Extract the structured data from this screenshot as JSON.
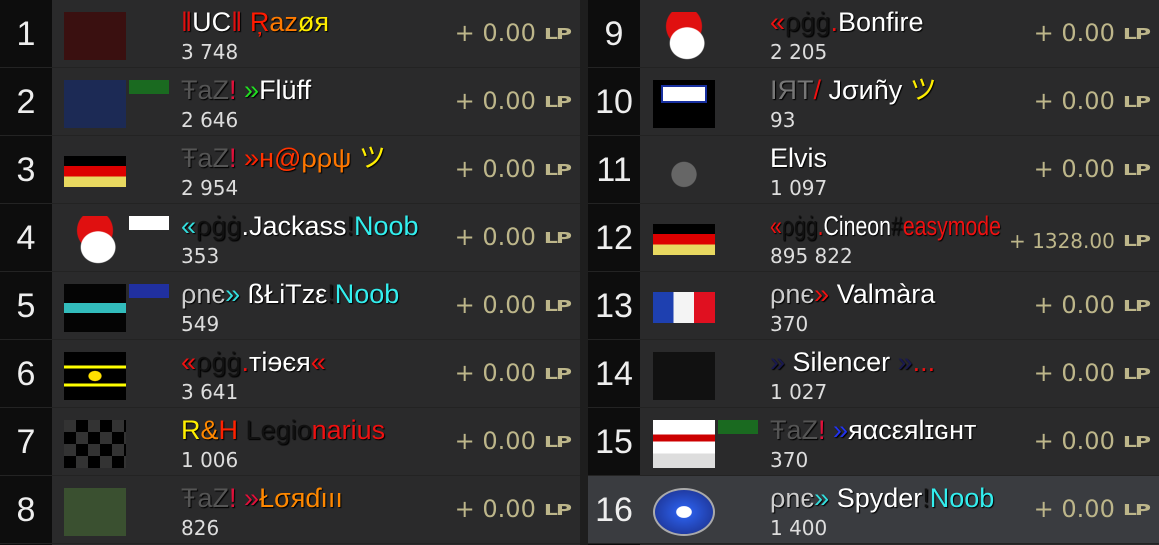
{
  "colors": {
    "points": "#bdb68a",
    "rank_bg": "#0d0d0d",
    "row_bg": "#2a2a2b",
    "highlight": "#3a3c40"
  },
  "points_unit": "LP",
  "rows": [
    {
      "rank": "1",
      "avatar": "burning-wheel-logo",
      "avatar_color": "#3a1010",
      "name": [
        {
          "t": "‖",
          "c": "#e01010"
        },
        {
          "t": "UC",
          "c": "#ffffff"
        },
        {
          "t": "‖ ",
          "c": "#e01010"
        },
        {
          "t": "Ŗ",
          "c": "#ff1a00"
        },
        {
          "t": "az",
          "c": "#ff7a00"
        },
        {
          "t": "øя",
          "c": "#ffee00"
        }
      ],
      "score": "3 748",
      "points": "+ 0.00"
    },
    {
      "rank": "2",
      "avatar": "cookie-monster-photo",
      "avatar_color": "#1c2a55",
      "badge": "#1a6a20",
      "name": [
        {
          "t": "ŦaZ",
          "c": "#555555"
        },
        {
          "t": "! ",
          "c": "#e0103a"
        },
        {
          "t": "»",
          "c": "#22dd22"
        },
        {
          "t": "Flüff",
          "c": "#ffffff"
        }
      ],
      "score": "2 646",
      "points": "+ 0.00"
    },
    {
      "rank": "3",
      "avatar": "germany-flag",
      "name": [
        {
          "t": "ŦaZ",
          "c": "#555555"
        },
        {
          "t": "! ",
          "c": "#e0103a"
        },
        {
          "t": "»",
          "c": "#ff2200"
        },
        {
          "t": "н@",
          "c": "#ff3300"
        },
        {
          "t": "ρρψ",
          "c": "#ff7700"
        },
        {
          "t": " ツ",
          "c": "#ffee00"
        }
      ],
      "score": "2 954",
      "points": "+ 0.00"
    },
    {
      "rank": "4",
      "avatar": "pgg-logo",
      "badge": "#ffffff",
      "name": [
        {
          "t": "«",
          "c": "#33dddd"
        },
        {
          "t": "ρġġ",
          "c": "#111111"
        },
        {
          "t": ".Jackass",
          "c": "#ffffff"
        },
        {
          "t": "!",
          "c": "#111111"
        },
        {
          "t": "Noob",
          "c": "#33eeee"
        }
      ],
      "score": "353",
      "points": "+ 0.00"
    },
    {
      "rank": "5",
      "avatar": "noobies-logo",
      "badge": "#2030a0",
      "name": [
        {
          "t": "ρnє",
          "c": "#cccccc"
        },
        {
          "t": "» ",
          "c": "#33dddd"
        },
        {
          "t": "ßŁiTzε",
          "c": "#ffffff"
        },
        {
          "t": "!",
          "c": "#111111"
        },
        {
          "t": "Noob",
          "c": "#33eeee"
        }
      ],
      "score": "549",
      "points": "+ 0.00"
    },
    {
      "rank": "6",
      "avatar": "omg-banana-image",
      "name": [
        {
          "t": "«",
          "c": "#ee1111"
        },
        {
          "t": "ρġġ",
          "c": "#111111"
        },
        {
          "t": ".",
          "c": "#ee1111"
        },
        {
          "t": "тiɘєя",
          "c": "#ffffff"
        },
        {
          "t": "«",
          "c": "#ee1111"
        }
      ],
      "score": "3 641",
      "points": "+ 0.00"
    },
    {
      "rank": "7",
      "avatar": "checkered-flag",
      "name": [
        {
          "t": "R",
          "c": "#ffee00"
        },
        {
          "t": "&",
          "c": "#ff8800"
        },
        {
          "t": "H ",
          "c": "#ff2200"
        },
        {
          "t": "Legio",
          "c": "#111111"
        },
        {
          "t": "narius",
          "c": "#ee1111"
        }
      ],
      "score": "1 006",
      "points": "+ 0.00"
    },
    {
      "rank": "8",
      "avatar": "player-photo",
      "avatar_color": "#3a5030",
      "name": [
        {
          "t": "ŦaZ",
          "c": "#555555"
        },
        {
          "t": "! ",
          "c": "#e0103a"
        },
        {
          "t": "»",
          "c": "#e0103a"
        },
        {
          "t": "Łσяɗııı",
          "c": "#ff8800"
        }
      ],
      "score": "826",
      "points": "+ 0.00"
    },
    {
      "rank": "9",
      "avatar": "pgg-logo",
      "name": [
        {
          "t": "«",
          "c": "#ee1111"
        },
        {
          "t": "ρġġ",
          "c": "#111111"
        },
        {
          "t": ".",
          "c": "#ee1111"
        },
        {
          "t": "Bonfire",
          "c": "#ffffff"
        }
      ],
      "score": "2 205",
      "points": "+ 0.00"
    },
    {
      "rank": "10",
      "avatar": "go-cats-sign",
      "name": [
        {
          "t": "ІЯТ",
          "c": "#777777"
        },
        {
          "t": "/ ",
          "c": "#ee1111"
        },
        {
          "t": "Jσиñу",
          "c": "#ffffff"
        },
        {
          "t": " ツ",
          "c": "#ffee00"
        }
      ],
      "score": "93",
      "points": "+ 0.00"
    },
    {
      "rank": "11",
      "avatar": "robot-head",
      "name": [
        {
          "t": "Elvis",
          "c": "#ffffff"
        }
      ],
      "score": "1 097",
      "points": "+ 0.00"
    },
    {
      "rank": "12",
      "avatar": "germany-flag",
      "name": [
        {
          "t": "«",
          "c": "#ee1111"
        },
        {
          "t": "ρġġ",
          "c": "#111111"
        },
        {
          "t": ".",
          "c": "#ee1111"
        },
        {
          "t": "Cineon",
          "c": "#ffffff"
        },
        {
          "t": "#",
          "c": "#111111"
        },
        {
          "t": "easymode",
          "c": "#ee1111"
        }
      ],
      "score": "895 822",
      "points": "+ 1328.00",
      "small": true
    },
    {
      "rank": "13",
      "avatar": "france-flag",
      "name": [
        {
          "t": "ρnє",
          "c": "#cccccc"
        },
        {
          "t": "» ",
          "c": "#ee1111"
        },
        {
          "t": "Valmàra",
          "c": "#ffffff"
        }
      ],
      "score": "370",
      "points": "+ 0.00"
    },
    {
      "rank": "14",
      "avatar": "dark-image",
      "name": [
        {
          "t": "» ",
          "c": "#1a1a50"
        },
        {
          "t": "Silencer ",
          "c": "#ffffff"
        },
        {
          "t": "»",
          "c": "#1a1a50"
        },
        {
          "t": "...",
          "c": "#ee1111"
        }
      ],
      "score": "1 027",
      "points": "+ 0.00"
    },
    {
      "rank": "15",
      "avatar": "racer-light-logo",
      "badge": "#1a6a20",
      "name": [
        {
          "t": "ŦaZ",
          "c": "#555555"
        },
        {
          "t": "! ",
          "c": "#e0103a"
        },
        {
          "t": "»",
          "c": "#2233ee"
        },
        {
          "t": "яαcεяlɪɢнт",
          "c": "#ffffff"
        }
      ],
      "score": "370",
      "points": "+ 0.00"
    },
    {
      "rank": "16",
      "avatar": "pne-logo",
      "highlight": true,
      "name": [
        {
          "t": "ρnє",
          "c": "#cccccc"
        },
        {
          "t": "» ",
          "c": "#33dddd"
        },
        {
          "t": "Spyder",
          "c": "#ffffff"
        },
        {
          "t": "!",
          "c": "#111111"
        },
        {
          "t": "Noob",
          "c": "#33eeee"
        }
      ],
      "score": "1 400",
      "points": "+ 0.00"
    }
  ]
}
